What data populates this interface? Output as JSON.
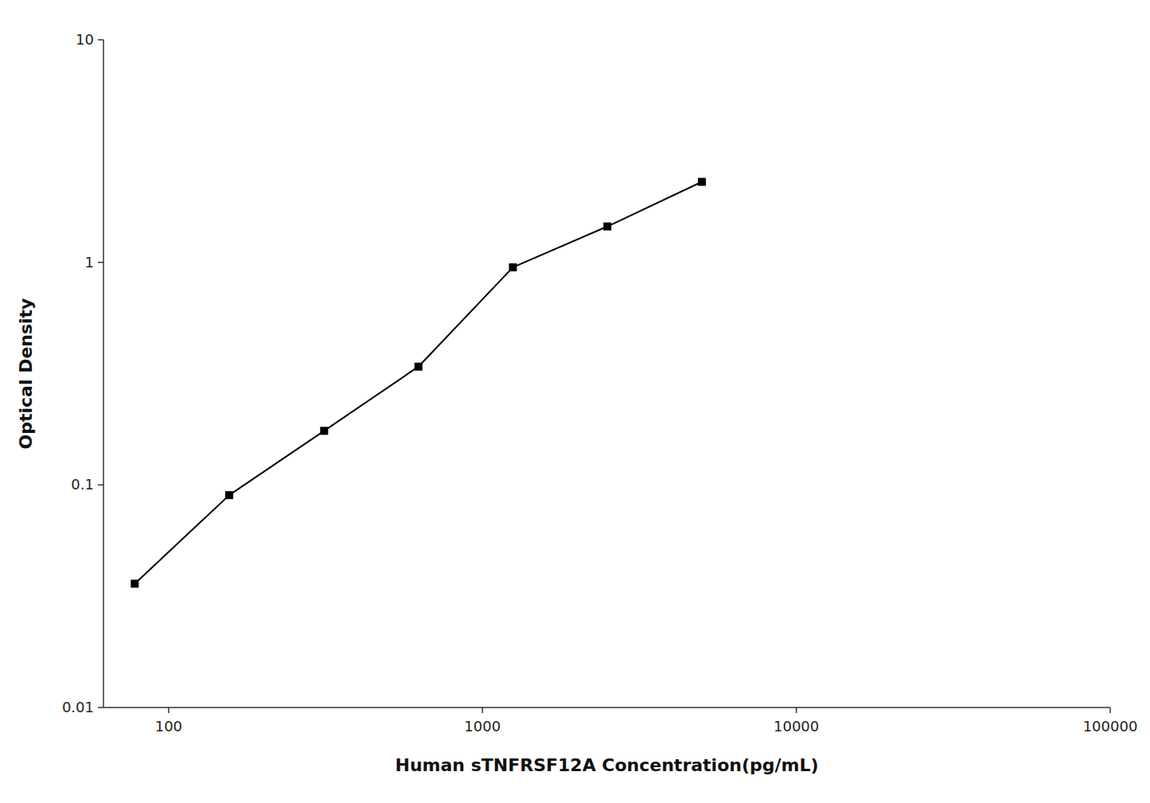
{
  "chart_data": {
    "type": "line",
    "x": [
      78,
      156,
      313,
      625,
      1250,
      2500,
      5000
    ],
    "values": [
      0.036,
      0.09,
      0.175,
      0.34,
      0.95,
      1.45,
      2.3
    ],
    "xlabel": "Human sTNFRSF12A Concentration(pg/mL)",
    "ylabel": "Optical Density",
    "color": "#000000",
    "marker": "square",
    "log": true,
    "grid": false,
    "xlim": [
      62,
      100000
    ],
    "ylim": [
      0.01,
      10
    ],
    "xticks": [
      100,
      1000,
      10000,
      100000
    ],
    "yticks": [
      0.01,
      0.1,
      1,
      10
    ]
  }
}
